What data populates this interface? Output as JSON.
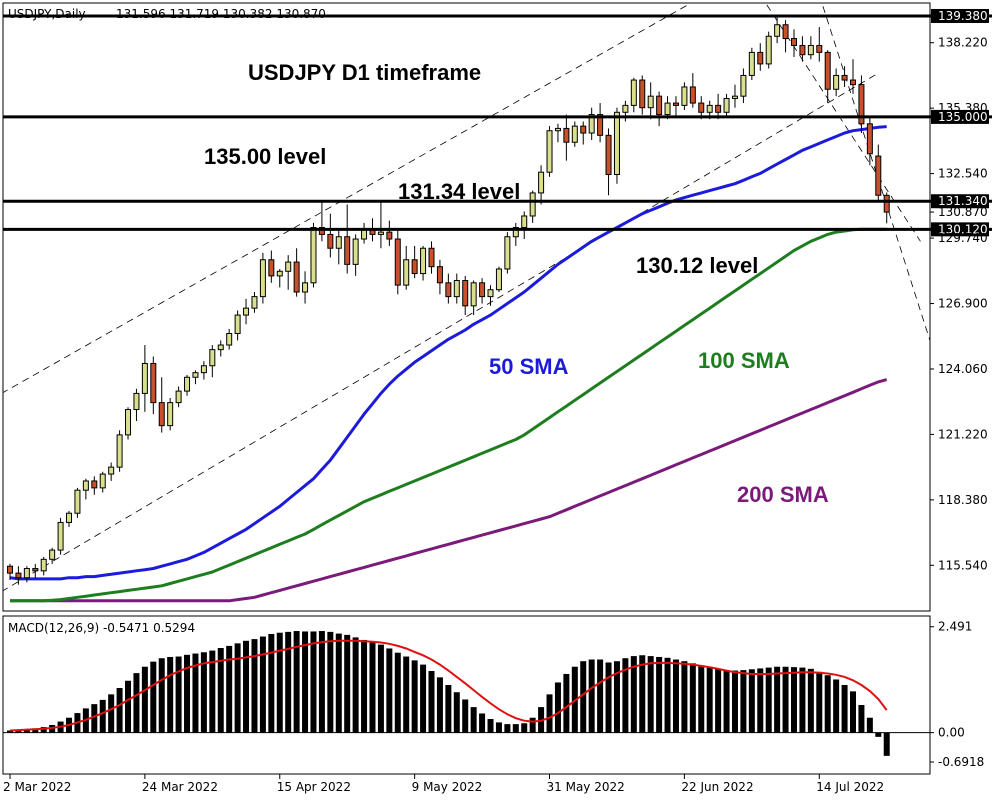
{
  "header": {
    "symbol": "USDJPY,Daily",
    "ohlc": "131.596 131.719 130.382 130.870"
  },
  "annotations": {
    "title": "USDJPY D1 timeframe",
    "level_135": "135.00 level",
    "level_13134": "131.34 level",
    "level_13012": "130.12 level",
    "sma50": "50 SMA",
    "sma100": "100 SMA",
    "sma200": "200 SMA"
  },
  "colors": {
    "sma50": "#1b1bd9",
    "sma100": "#1e7d1e",
    "sma200": "#7a1a7a",
    "bull_fill": "#d9df8c",
    "bear_fill": "#c8502a",
    "macd_signal": "#e01010",
    "macd_hist": "#000000"
  },
  "chart_data": [
    {
      "type": "candlestick",
      "title": "USDJPY,Daily",
      "ylim": [
        113.6,
        139.9
      ],
      "y_ticks": [
        "139.380",
        "138.220",
        "135.380",
        "135.000",
        "132.540",
        "131.340",
        "130.870",
        "130.120",
        "129.740",
        "126.900",
        "124.060",
        "121.220",
        "118.380",
        "115.540"
      ],
      "x_ticks": [
        "2 Mar 2022",
        "24 Mar 2022",
        "15 Apr 2022",
        "9 May 2022",
        "31 May 2022",
        "22 Jun 2022",
        "14 Jul 2022"
      ],
      "x_tick_index": [
        0,
        16,
        32,
        48,
        64,
        80,
        96
      ],
      "horizontal_levels": [
        139.38,
        135.0,
        131.34,
        130.12
      ],
      "highlighted_levels": [
        "139.380",
        "135.000",
        "131.340",
        "130.120"
      ],
      "candles": [
        [
          115.5,
          115.6,
          114.9,
          115.2
        ],
        [
          115.2,
          115.5,
          114.7,
          115.0
        ],
        [
          115.0,
          115.5,
          114.8,
          115.4
        ],
        [
          115.4,
          115.6,
          115.0,
          115.3
        ],
        [
          115.3,
          115.9,
          115.1,
          115.8
        ],
        [
          115.8,
          116.3,
          115.6,
          116.2
        ],
        [
          116.2,
          117.6,
          116.0,
          117.4
        ],
        [
          117.4,
          117.9,
          117.2,
          117.8
        ],
        [
          117.8,
          118.9,
          117.6,
          118.8
        ],
        [
          118.8,
          119.3,
          118.4,
          119.2
        ],
        [
          119.2,
          119.4,
          118.6,
          118.9
        ],
        [
          118.9,
          119.6,
          118.7,
          119.5
        ],
        [
          119.5,
          120.0,
          119.2,
          119.8
        ],
        [
          119.8,
          121.4,
          119.6,
          121.2
        ],
        [
          121.2,
          122.4,
          121.0,
          122.3
        ],
        [
          122.3,
          123.2,
          121.8,
          123.0
        ],
        [
          123.0,
          125.1,
          122.2,
          124.3
        ],
        [
          124.3,
          124.6,
          122.1,
          122.6
        ],
        [
          122.6,
          123.7,
          121.3,
          121.6
        ],
        [
          121.6,
          122.8,
          121.4,
          122.6
        ],
        [
          122.6,
          123.3,
          122.4,
          123.1
        ],
        [
          123.1,
          123.8,
          122.9,
          123.7
        ],
        [
          123.7,
          124.0,
          123.4,
          123.9
        ],
        [
          123.9,
          124.4,
          123.6,
          124.2
        ],
        [
          124.2,
          125.1,
          123.7,
          124.9
        ],
        [
          124.9,
          125.3,
          124.6,
          125.1
        ],
        [
          125.1,
          125.8,
          124.9,
          125.6
        ],
        [
          125.6,
          126.6,
          125.3,
          126.4
        ],
        [
          126.4,
          127.1,
          126.0,
          126.7
        ],
        [
          126.7,
          127.4,
          126.5,
          127.2
        ],
        [
          127.2,
          129.1,
          126.9,
          128.8
        ],
        [
          128.8,
          129.2,
          127.8,
          128.1
        ],
        [
          128.1,
          128.4,
          127.6,
          128.3
        ],
        [
          128.3,
          129.0,
          127.5,
          128.7
        ],
        [
          128.7,
          129.3,
          127.2,
          127.4
        ],
        [
          127.4,
          128.3,
          126.9,
          127.8
        ],
        [
          127.8,
          130.4,
          127.6,
          130.2
        ],
        [
          130.2,
          131.3,
          129.6,
          129.9
        ],
        [
          129.9,
          130.8,
          128.9,
          129.3
        ],
        [
          129.3,
          130.1,
          128.6,
          129.8
        ],
        [
          129.8,
          131.2,
          128.2,
          128.6
        ],
        [
          128.6,
          129.9,
          128.1,
          129.7
        ],
        [
          129.7,
          130.4,
          129.5,
          130.1
        ],
        [
          130.1,
          130.6,
          129.6,
          129.9
        ],
        [
          129.9,
          131.3,
          129.3,
          130.0
        ],
        [
          130.0,
          130.5,
          129.4,
          129.7
        ],
        [
          129.7,
          130.1,
          127.3,
          127.7
        ],
        [
          127.7,
          129.4,
          127.5,
          128.8
        ],
        [
          128.8,
          129.4,
          128.0,
          128.2
        ],
        [
          128.2,
          129.4,
          127.9,
          129.3
        ],
        [
          129.3,
          129.6,
          128.2,
          128.5
        ],
        [
          128.5,
          128.8,
          127.3,
          127.8
        ],
        [
          127.8,
          128.2,
          126.9,
          127.2
        ],
        [
          127.2,
          128.2,
          126.9,
          127.9
        ],
        [
          127.9,
          128.1,
          126.4,
          126.8
        ],
        [
          126.8,
          127.9,
          126.4,
          127.8
        ],
        [
          127.8,
          128.0,
          126.9,
          127.2
        ],
        [
          127.2,
          127.7,
          126.8,
          127.5
        ],
        [
          127.5,
          128.5,
          127.4,
          128.4
        ],
        [
          128.4,
          130.0,
          128.2,
          129.8
        ],
        [
          129.8,
          130.4,
          129.4,
          130.2
        ],
        [
          130.2,
          130.9,
          129.7,
          130.7
        ],
        [
          130.7,
          131.8,
          130.4,
          131.7
        ],
        [
          131.7,
          132.9,
          131.2,
          132.6
        ],
        [
          132.6,
          134.6,
          132.4,
          134.4
        ],
        [
          134.4,
          134.7,
          133.9,
          134.5
        ],
        [
          134.5,
          135.1,
          133.1,
          133.9
        ],
        [
          133.9,
          134.8,
          133.7,
          134.6
        ],
        [
          134.6,
          134.8,
          133.8,
          134.3
        ],
        [
          134.3,
          135.4,
          134.0,
          135.1
        ],
        [
          135.1,
          135.6,
          133.9,
          134.2
        ],
        [
          134.2,
          134.5,
          131.6,
          132.5
        ],
        [
          132.5,
          135.4,
          132.1,
          135.2
        ],
        [
          135.2,
          135.7,
          134.8,
          135.5
        ],
        [
          135.5,
          136.7,
          135.2,
          136.6
        ],
        [
          136.6,
          136.8,
          135.1,
          135.4
        ],
        [
          135.4,
          136.5,
          134.9,
          135.9
        ],
        [
          135.9,
          136.1,
          134.6,
          135.1
        ],
        [
          135.1,
          135.9,
          134.9,
          135.6
        ],
        [
          135.6,
          135.9,
          135.0,
          135.5
        ],
        [
          135.5,
          136.5,
          135.3,
          136.3
        ],
        [
          136.3,
          136.9,
          135.4,
          135.6
        ],
        [
          135.6,
          135.9,
          134.9,
          135.2
        ],
        [
          135.2,
          135.7,
          134.9,
          135.5
        ],
        [
          135.5,
          136.0,
          134.9,
          135.2
        ],
        [
          135.2,
          136.0,
          135.0,
          135.8
        ],
        [
          135.8,
          136.4,
          135.4,
          135.9
        ],
        [
          135.9,
          137.1,
          135.6,
          136.8
        ],
        [
          136.8,
          138.0,
          136.6,
          137.8
        ],
        [
          137.8,
          138.2,
          137.0,
          137.3
        ],
        [
          137.3,
          138.7,
          137.1,
          138.5
        ],
        [
          138.5,
          139.4,
          138.2,
          139.0
        ],
        [
          139.0,
          139.2,
          137.8,
          138.4
        ],
        [
          138.4,
          138.8,
          137.6,
          138.1
        ],
        [
          138.1,
          138.5,
          137.4,
          137.7
        ],
        [
          137.7,
          138.5,
          137.5,
          138.1
        ],
        [
          138.1,
          138.9,
          137.4,
          137.8
        ],
        [
          137.8,
          137.9,
          135.6,
          136.2
        ],
        [
          136.2,
          137.1,
          135.9,
          136.8
        ],
        [
          136.8,
          137.2,
          136.3,
          136.6
        ],
        [
          136.6,
          137.5,
          136.0,
          136.4
        ],
        [
          136.4,
          136.8,
          134.3,
          134.7
        ],
        [
          134.7,
          135.0,
          132.9,
          133.4
        ],
        [
          133.3,
          133.8,
          131.3,
          131.6
        ],
        [
          131.596,
          131.719,
          130.382,
          130.87
        ]
      ],
      "sma50": [
        115.0,
        114.95,
        114.95,
        114.95,
        114.95,
        114.95,
        114.95,
        115.0,
        115.0,
        115.05,
        115.05,
        115.1,
        115.15,
        115.2,
        115.25,
        115.3,
        115.35,
        115.4,
        115.5,
        115.6,
        115.7,
        115.8,
        115.95,
        116.1,
        116.3,
        116.5,
        116.7,
        116.9,
        117.1,
        117.35,
        117.6,
        117.85,
        118.1,
        118.4,
        118.7,
        119.0,
        119.3,
        119.7,
        120.1,
        120.6,
        121.1,
        121.6,
        122.1,
        122.55,
        123.0,
        123.4,
        123.75,
        124.05,
        124.35,
        124.6,
        124.85,
        125.1,
        125.35,
        125.55,
        125.75,
        126.0,
        126.2,
        126.4,
        126.65,
        126.9,
        127.15,
        127.4,
        127.7,
        128.0,
        128.3,
        128.6,
        128.85,
        129.1,
        129.35,
        129.6,
        129.8,
        130.0,
        130.2,
        130.4,
        130.6,
        130.8,
        130.95,
        131.1,
        131.25,
        131.4,
        131.5,
        131.6,
        131.7,
        131.8,
        131.9,
        132.0,
        132.1,
        132.25,
        132.4,
        132.55,
        132.75,
        132.95,
        133.15,
        133.35,
        133.55,
        133.7,
        133.85,
        134.0,
        134.15,
        134.3,
        134.4,
        134.45,
        134.5,
        134.55,
        134.58
      ],
      "sma100": [
        114.0,
        114.0,
        114.0,
        114.0,
        114.0,
        114.02,
        114.05,
        114.1,
        114.15,
        114.2,
        114.25,
        114.3,
        114.35,
        114.4,
        114.45,
        114.5,
        114.55,
        114.6,
        114.65,
        114.75,
        114.85,
        114.95,
        115.05,
        115.15,
        115.25,
        115.4,
        115.55,
        115.7,
        115.85,
        116.0,
        116.15,
        116.3,
        116.45,
        116.6,
        116.75,
        116.9,
        117.1,
        117.3,
        117.5,
        117.7,
        117.9,
        118.1,
        118.3,
        118.45,
        118.6,
        118.75,
        118.9,
        119.05,
        119.2,
        119.35,
        119.5,
        119.65,
        119.8,
        119.95,
        120.1,
        120.25,
        120.4,
        120.55,
        120.7,
        120.85,
        121.0,
        121.2,
        121.45,
        121.7,
        121.95,
        122.2,
        122.45,
        122.7,
        122.95,
        123.2,
        123.45,
        123.7,
        123.95,
        124.2,
        124.45,
        124.7,
        124.95,
        125.2,
        125.45,
        125.7,
        125.95,
        126.2,
        126.45,
        126.7,
        126.95,
        127.2,
        127.45,
        127.7,
        127.95,
        128.2,
        128.45,
        128.7,
        128.95,
        129.2,
        129.4,
        129.6,
        129.75,
        129.9,
        130.0,
        130.05,
        130.1,
        130.12,
        130.12,
        130.12,
        130.12
      ],
      "sma200": [
        114.0,
        114.0,
        114.0,
        114.0,
        114.0,
        114.0,
        114.0,
        114.0,
        114.0,
        114.0,
        114.0,
        114.0,
        114.0,
        114.0,
        114.0,
        114.0,
        114.0,
        114.0,
        114.0,
        114.0,
        114.0,
        114.0,
        114.0,
        114.0,
        114.0,
        114.0,
        114.0,
        114.05,
        114.1,
        114.15,
        114.25,
        114.35,
        114.45,
        114.55,
        114.65,
        114.75,
        114.85,
        114.95,
        115.05,
        115.15,
        115.25,
        115.35,
        115.45,
        115.55,
        115.65,
        115.75,
        115.85,
        115.95,
        116.05,
        116.15,
        116.25,
        116.35,
        116.45,
        116.55,
        116.65,
        116.75,
        116.85,
        116.95,
        117.05,
        117.15,
        117.25,
        117.35,
        117.45,
        117.55,
        117.65,
        117.8,
        117.95,
        118.1,
        118.25,
        118.4,
        118.55,
        118.7,
        118.85,
        119.0,
        119.15,
        119.3,
        119.45,
        119.6,
        119.75,
        119.9,
        120.05,
        120.2,
        120.35,
        120.5,
        120.65,
        120.8,
        120.95,
        121.1,
        121.25,
        121.4,
        121.55,
        121.7,
        121.85,
        122.0,
        122.15,
        122.3,
        122.45,
        122.6,
        122.75,
        122.9,
        123.05,
        123.2,
        123.35,
        123.5,
        123.6
      ]
    },
    {
      "type": "bar",
      "title": "MACD(12,26,9) -0.5471 0.5294",
      "ylim": [
        -0.95,
        2.72
      ],
      "y_ticks": [
        "2.491",
        "0.00",
        "-0.6918"
      ],
      "macd": [
        0.05,
        0.06,
        0.08,
        0.1,
        0.13,
        0.18,
        0.26,
        0.35,
        0.46,
        0.57,
        0.67,
        0.77,
        0.9,
        1.05,
        1.22,
        1.4,
        1.55,
        1.67,
        1.75,
        1.78,
        1.79,
        1.83,
        1.86,
        1.89,
        1.93,
        1.99,
        2.04,
        2.1,
        2.16,
        2.2,
        2.26,
        2.32,
        2.35,
        2.37,
        2.39,
        2.38,
        2.38,
        2.39,
        2.37,
        2.33,
        2.3,
        2.24,
        2.18,
        2.13,
        2.07,
        1.98,
        1.88,
        1.79,
        1.7,
        1.6,
        1.45,
        1.3,
        1.12,
        0.95,
        0.78,
        0.6,
        0.45,
        0.32,
        0.24,
        0.2,
        0.2,
        0.22,
        0.35,
        0.6,
        0.9,
        1.18,
        1.38,
        1.55,
        1.68,
        1.72,
        1.72,
        1.65,
        1.68,
        1.75,
        1.8,
        1.82,
        1.8,
        1.78,
        1.76,
        1.72,
        1.68,
        1.63,
        1.58,
        1.54,
        1.5,
        1.47,
        1.46,
        1.47,
        1.49,
        1.51,
        1.53,
        1.55,
        1.55,
        1.54,
        1.53,
        1.5,
        1.43,
        1.35,
        1.25,
        1.12,
        0.97,
        0.65,
        0.35,
        -0.1,
        -0.5471
      ],
      "signal": [
        0.05,
        0.06,
        0.07,
        0.08,
        0.09,
        0.11,
        0.14,
        0.18,
        0.24,
        0.3,
        0.38,
        0.46,
        0.55,
        0.65,
        0.77,
        0.88,
        1.0,
        1.12,
        1.24,
        1.35,
        1.44,
        1.52,
        1.58,
        1.63,
        1.66,
        1.69,
        1.72,
        1.74,
        1.77,
        1.8,
        1.84,
        1.88,
        1.93,
        1.97,
        2.02,
        2.06,
        2.1,
        2.13,
        2.15,
        2.16,
        2.16,
        2.16,
        2.15,
        2.14,
        2.12,
        2.09,
        2.04,
        1.98,
        1.9,
        1.82,
        1.72,
        1.6,
        1.46,
        1.31,
        1.16,
        1.0,
        0.84,
        0.69,
        0.55,
        0.43,
        0.34,
        0.28,
        0.26,
        0.28,
        0.35,
        0.46,
        0.6,
        0.75,
        0.9,
        1.05,
        1.18,
        1.3,
        1.4,
        1.48,
        1.55,
        1.6,
        1.63,
        1.64,
        1.64,
        1.63,
        1.62,
        1.6,
        1.57,
        1.54,
        1.5,
        1.46,
        1.42,
        1.4,
        1.38,
        1.38,
        1.38,
        1.39,
        1.4,
        1.41,
        1.42,
        1.42,
        1.41,
        1.39,
        1.36,
        1.31,
        1.23,
        1.12,
        0.98,
        0.79,
        0.5294
      ]
    }
  ]
}
